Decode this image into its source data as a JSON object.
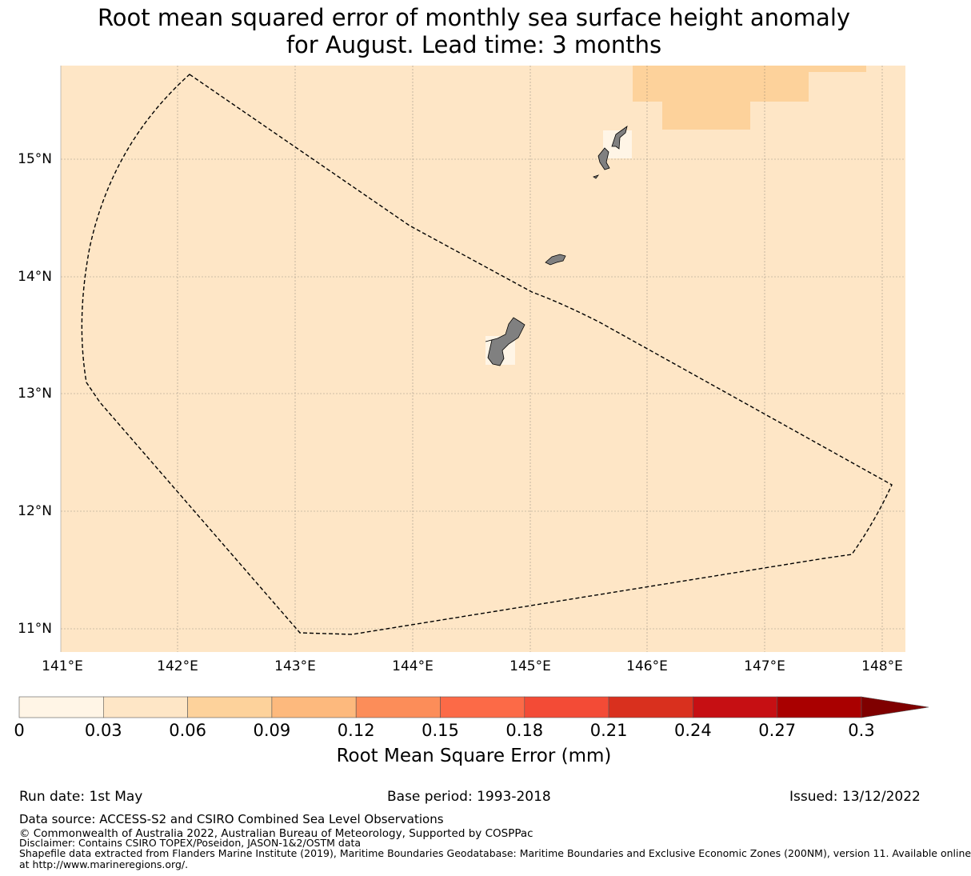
{
  "title_line1": "Root mean squared error of monthly sea surface height anomaly",
  "title_line2": "for August. Lead time: 3 months",
  "map": {
    "lon_labels": [
      "141°E",
      "142°E",
      "143°E",
      "144°E",
      "145°E",
      "146°E",
      "147°E",
      "148°E"
    ],
    "lat_labels": [
      "15°N",
      "14°N",
      "13°N",
      "12°N",
      "11°N"
    ],
    "background_color": "#fee6c6",
    "eez_boundary_style": "dashed"
  },
  "colorbar": {
    "label": "Root Mean Square Error (mm)",
    "ticks": [
      "0",
      "0.03",
      "0.06",
      "0.09",
      "0.12",
      "0.15",
      "0.18",
      "0.21",
      "0.24",
      "0.27",
      "0.3"
    ],
    "colors": [
      "#fff5e6",
      "#fee6c6",
      "#fdd29b",
      "#fdb97d",
      "#fc8d59",
      "#fc6a47",
      "#f34b36",
      "#d9301e",
      "#c60f13",
      "#a90000"
    ],
    "extend_color": "#7f0000"
  },
  "footer": {
    "run_date": "Run date: 1st May",
    "base_period": "Base period: 1993-2018",
    "issued": "Issued: 13/12/2022",
    "data_source": "Data source: ACCESS-S2 and CSIRO Combined Sea Level Observations",
    "copyright": "© Commonwealth of Australia 2022, Australian Bureau of Meteorology, Supported by COSPPac",
    "disclaimer": "Disclaimer: Contains CSIRO TOPEX/Poseidon, JASON-1&2/OSTM data",
    "shapefile1": "Shapefile data extracted from Flanders Marine Institute (2019), Maritime Boundaries Geodatabase: Maritime Boundaries and Exclusive Economic Zones (200NM), version 11. Available online",
    "shapefile2": "at http://www.marineregions.org/."
  }
}
